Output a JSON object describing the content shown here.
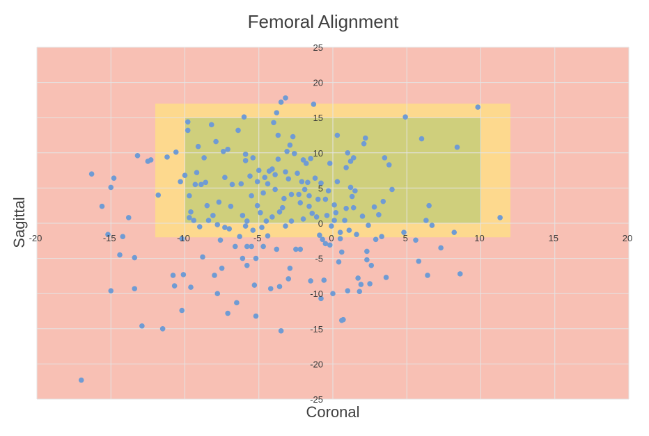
{
  "chart_data": {
    "type": "scatter",
    "title": "Femoral Alignment",
    "xlabel": "Coronal",
    "ylabel": "Sagittal",
    "xlim": [
      -20,
      20
    ],
    "ylim": [
      -25,
      25
    ],
    "x_ticks": [
      -20,
      -15,
      -10,
      -5,
      0,
      5,
      10,
      15,
      20
    ],
    "y_ticks": [
      -25,
      -20,
      -15,
      -10,
      -5,
      0,
      5,
      10,
      15,
      20,
      25
    ],
    "x_tick_labels": [
      "-20",
      "-15",
      "-10",
      "-5",
      "0",
      "5",
      "10",
      "15",
      "20"
    ],
    "y_tick_labels": [
      "-25",
      "-20",
      "-15",
      "-10",
      "-5",
      "0",
      "5",
      "10",
      "15",
      "20",
      "25"
    ],
    "grid": true,
    "legend": "none",
    "colors": {
      "outer_zone": "#f8c0b4",
      "middle_zone": "#fdd98e",
      "inner_zone": "#cfcf7c",
      "points": "#6f9bd4",
      "grid": "#e4e4e4"
    },
    "zones": [
      {
        "x": [
          -20,
          20
        ],
        "y": [
          -25,
          25
        ],
        "color_key": "outer_zone"
      },
      {
        "x": [
          -12,
          12
        ],
        "y": [
          -2,
          17
        ]
      },
      {
        "x": [
          -10,
          10
        ],
        "y": [
          0,
          15
        ]
      }
    ],
    "points": [
      [
        -17,
        -22.3
      ],
      [
        -16.3,
        7
      ],
      [
        -15.6,
        2.4
      ],
      [
        -15.2,
        -1.6
      ],
      [
        -15,
        5.1
      ],
      [
        -14.8,
        6.4
      ],
      [
        -15,
        -9.6
      ],
      [
        -14.4,
        -4.5
      ],
      [
        -14.2,
        -1.9
      ],
      [
        -13.8,
        0.8
      ],
      [
        -13.4,
        -4.9
      ],
      [
        -13.4,
        -9.3
      ],
      [
        -13.2,
        9.6
      ],
      [
        -12.9,
        -14.6
      ],
      [
        -12.5,
        8.8
      ],
      [
        -12.3,
        9
      ],
      [
        -11.8,
        4
      ],
      [
        -11.5,
        -15
      ],
      [
        -11.2,
        9.4
      ],
      [
        -10.8,
        -7.4
      ],
      [
        -10.7,
        -8.9
      ],
      [
        -10.6,
        10.1
      ],
      [
        -10.3,
        5.9
      ],
      [
        -10.2,
        -2.2
      ],
      [
        -10.2,
        -12.4
      ],
      [
        -10.1,
        -7.3
      ],
      [
        -10,
        6.8
      ],
      [
        -9.8,
        14.4
      ],
      [
        -9.8,
        13.2
      ],
      [
        -9.7,
        3.9
      ],
      [
        -9.7,
        0.8
      ],
      [
        -9.6,
        -9.1
      ],
      [
        -9.6,
        1.6
      ],
      [
        -9.4,
        0.4
      ],
      [
        -9.3,
        5.5
      ],
      [
        -9.1,
        10.9
      ],
      [
        -9.2,
        7.2
      ],
      [
        -9,
        -0.5
      ],
      [
        -8.9,
        5.5
      ],
      [
        -8.8,
        -4.8
      ],
      [
        -8.7,
        9.3
      ],
      [
        -8.6,
        5.8
      ],
      [
        -8.5,
        2.5
      ],
      [
        -8.4,
        0.4
      ],
      [
        -8.2,
        14
      ],
      [
        -8.1,
        1.1
      ],
      [
        -8,
        -7.4
      ],
      [
        -7.9,
        11.6
      ],
      [
        -7.8,
        -0.2
      ],
      [
        -7.8,
        -10
      ],
      [
        -7.7,
        3
      ],
      [
        -7.6,
        -2.4
      ],
      [
        -7.5,
        -6.4
      ],
      [
        -7.4,
        10.2
      ],
      [
        -7.3,
        6.5
      ],
      [
        -7.3,
        -0.6
      ],
      [
        -7.1,
        -12.8
      ],
      [
        -7.1,
        10.5
      ],
      [
        -7,
        -0.8
      ],
      [
        -6.9,
        2.4
      ],
      [
        -6.8,
        5.5
      ],
      [
        -6.6,
        -3.3
      ],
      [
        -6.5,
        -11.3
      ],
      [
        -6.4,
        13.2
      ],
      [
        -6.3,
        -1.9
      ],
      [
        -6.2,
        5.6
      ],
      [
        -6.1,
        1.1
      ],
      [
        -6.1,
        -5
      ],
      [
        -6,
        15.1
      ],
      [
        -5.9,
        9.8
      ],
      [
        -5.9,
        -0.4
      ],
      [
        -5.9,
        8.9
      ],
      [
        -5.8,
        -3.3
      ],
      [
        -5.8,
        -6
      ],
      [
        -5.8,
        0.3
      ],
      [
        -5.6,
        6.7
      ],
      [
        -5.5,
        3.9
      ],
      [
        -5.5,
        -3.3
      ],
      [
        -5.4,
        9.3
      ],
      [
        -5.4,
        -1
      ],
      [
        -5.3,
        -8.8
      ],
      [
        -5.2,
        -13.2
      ],
      [
        -5.2,
        -5
      ],
      [
        -5.1,
        2.5
      ],
      [
        -5.1,
        5.9
      ],
      [
        -5,
        7.5
      ],
      [
        -4.9,
        1.5
      ],
      [
        -4.8,
        -0.6
      ],
      [
        -4.7,
        4.3
      ],
      [
        -4.7,
        -3.3
      ],
      [
        -4.6,
        6.5
      ],
      [
        -4.5,
        0.3
      ],
      [
        -4.4,
        -1.8
      ],
      [
        -4.4,
        5.6
      ],
      [
        -4.3,
        7.4
      ],
      [
        -4.2,
        -9.3
      ],
      [
        -4.1,
        7.7
      ],
      [
        -4.1,
        0.9
      ],
      [
        -4,
        14.3
      ],
      [
        -3.9,
        4.8
      ],
      [
        -3.9,
        6.9
      ],
      [
        -3.8,
        -3.7
      ],
      [
        -3.8,
        15.7
      ],
      [
        -3.7,
        9.1
      ],
      [
        -3.7,
        12.5
      ],
      [
        -3.6,
        -9
      ],
      [
        -3.6,
        1.6
      ],
      [
        -3.5,
        17.2
      ],
      [
        -3.5,
        -15.3
      ],
      [
        -3.4,
        2.2
      ],
      [
        -3.3,
        3.5
      ],
      [
        -3.2,
        7.3
      ],
      [
        -3.2,
        -0.4
      ],
      [
        -3.2,
        17.8
      ],
      [
        -3.1,
        10.2
      ],
      [
        -3,
        -7.9
      ],
      [
        -3,
        6.3
      ],
      [
        -2.9,
        -6.4
      ],
      [
        -2.9,
        11.1
      ],
      [
        -2.8,
        4.1
      ],
      [
        -2.8,
        0.3
      ],
      [
        -2.7,
        12.3
      ],
      [
        -2.6,
        9.9
      ],
      [
        -2.5,
        -3.7
      ],
      [
        -2.4,
        7.1
      ],
      [
        -2.3,
        4.1
      ],
      [
        -2.2,
        -3.7
      ],
      [
        -2.2,
        2.9
      ],
      [
        -2.1,
        5.9
      ],
      [
        -2,
        9
      ],
      [
        -2,
        0.6
      ],
      [
        -1.9,
        4.8
      ],
      [
        -1.8,
        8.5
      ],
      [
        -1.7,
        5.8
      ],
      [
        -1.6,
        2.4
      ],
      [
        -1.6,
        3.9
      ],
      [
        -1.5,
        9.2
      ],
      [
        -1.5,
        -8.2
      ],
      [
        -1.4,
        1.4
      ],
      [
        -1.3,
        16.9
      ],
      [
        -1.2,
        6.4
      ],
      [
        -1.1,
        0.9
      ],
      [
        -1,
        3.4
      ],
      [
        -0.9,
        -1.7
      ],
      [
        -0.8,
        5.7
      ],
      [
        -0.8,
        -10.7
      ],
      [
        -0.7,
        -2.3
      ],
      [
        -0.6,
        -8.1
      ],
      [
        -0.5,
        -2.9
      ],
      [
        -0.5,
        3.4
      ],
      [
        -0.4,
        1.1
      ],
      [
        -0.3,
        4.6
      ],
      [
        -0.2,
        -3.1
      ],
      [
        -0.2,
        8.5
      ],
      [
        -0.1,
        -0.4
      ],
      [
        0,
        -10
      ],
      [
        0.1,
        0.4
      ],
      [
        0.1,
        2.6
      ],
      [
        0.2,
        1.5
      ],
      [
        0.3,
        5.9
      ],
      [
        0.3,
        12.5
      ],
      [
        0.4,
        -5.5
      ],
      [
        0.5,
        -2.2
      ],
      [
        0.5,
        -1.3
      ],
      [
        0.6,
        -4.1
      ],
      [
        0.6,
        -13.8
      ],
      [
        0.7,
        -13.7
      ],
      [
        0.8,
        0.4
      ],
      [
        0.9,
        2.1
      ],
      [
        0.9,
        7.9
      ],
      [
        1,
        10
      ],
      [
        1,
        -9.6
      ],
      [
        1.1,
        -1
      ],
      [
        1.2,
        5.1
      ],
      [
        1.2,
        8.8
      ],
      [
        1.3,
        3.8
      ],
      [
        1.4,
        2.2
      ],
      [
        1.4,
        9.3
      ],
      [
        1.5,
        4.6
      ],
      [
        1.6,
        -1.6
      ],
      [
        1.7,
        -7.8
      ],
      [
        1.8,
        -9.7
      ],
      [
        1.9,
        -8.7
      ],
      [
        2,
        1
      ],
      [
        2.1,
        11.3
      ],
      [
        2.2,
        12.1
      ],
      [
        2.3,
        -5.2
      ],
      [
        2.3,
        -4
      ],
      [
        2.4,
        -0.3
      ],
      [
        2.5,
        -8.6
      ],
      [
        2.6,
        -6
      ],
      [
        2.8,
        2.3
      ],
      [
        2.9,
        -2.3
      ],
      [
        3.1,
        1.2
      ],
      [
        3.3,
        -1.9
      ],
      [
        3.4,
        3.1
      ],
      [
        3.5,
        9.3
      ],
      [
        3.6,
        -7.7
      ],
      [
        3.8,
        8.3
      ],
      [
        4,
        4.8
      ],
      [
        4.8,
        -1.3
      ],
      [
        4.9,
        15.1
      ],
      [
        5.6,
        -2.4
      ],
      [
        5.8,
        -5.4
      ],
      [
        6,
        12
      ],
      [
        6.3,
        0.4
      ],
      [
        6.4,
        -7.4
      ],
      [
        6.5,
        2.5
      ],
      [
        6.7,
        -0.3
      ],
      [
        7.3,
        -3.5
      ],
      [
        8.2,
        -1.3
      ],
      [
        8.4,
        10.8
      ],
      [
        8.6,
        -7.2
      ],
      [
        9.8,
        16.5
      ],
      [
        11.3,
        0.8
      ]
    ]
  }
}
